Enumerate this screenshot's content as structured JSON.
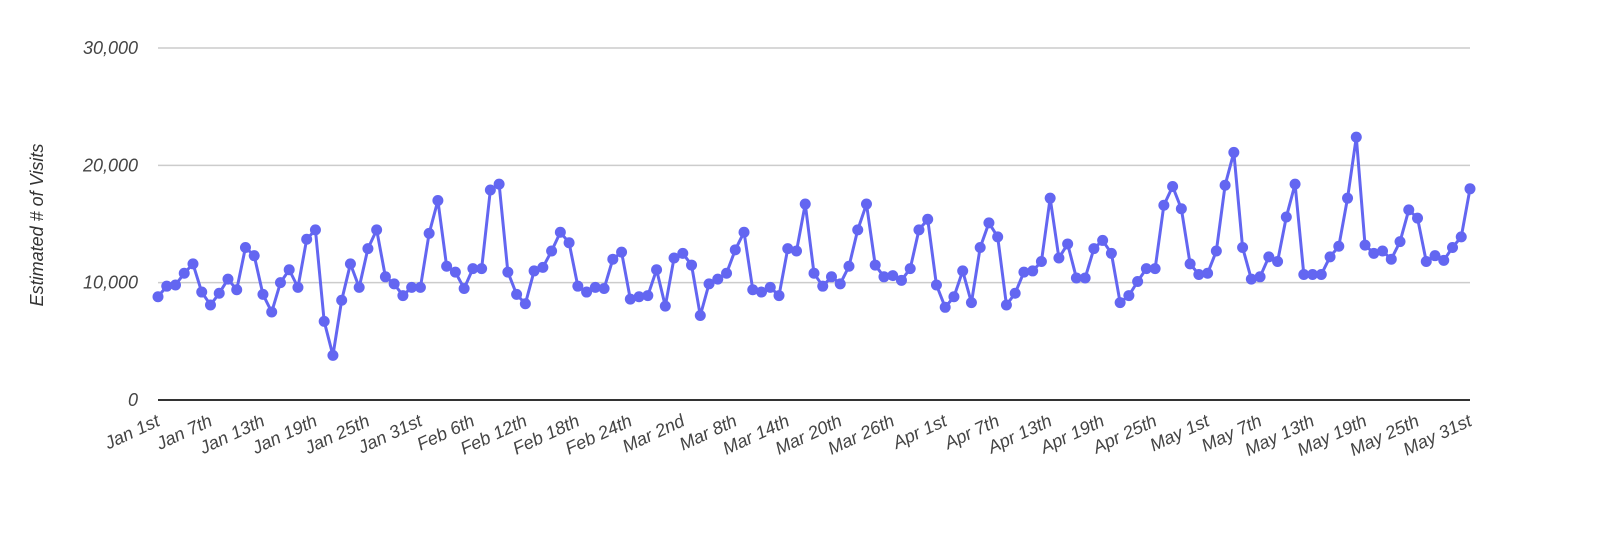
{
  "chart_data": {
    "type": "line",
    "title": "",
    "xlabel": "",
    "ylabel": "Estimated # of Visits",
    "ylim": [
      0,
      30000
    ],
    "y_ticks": [
      0,
      10000,
      20000,
      30000
    ],
    "y_tick_labels": [
      "0",
      "10,000",
      "20,000",
      "30,000"
    ],
    "x_tick_labels": [
      "Jan 1st",
      "Jan 7th",
      "Jan 13th",
      "Jan 19th",
      "Jan 25th",
      "Jan 31st",
      "Feb 6th",
      "Feb 12th",
      "Feb 18th",
      "Feb 24th",
      "Mar 2nd",
      "Mar 8th",
      "Mar 14th",
      "Mar 20th",
      "Mar 26th",
      "Apr 1st",
      "Apr 7th",
      "Apr 13th",
      "Apr 19th",
      "Apr 25th",
      "May 1st",
      "May 7th",
      "May 13th",
      "May 19th",
      "May 25th",
      "May 31st"
    ],
    "x_tick_every_days": 6,
    "grid": true,
    "color": "#6366F1",
    "series": [
      {
        "values": [
          8800,
          9700,
          9800,
          10800,
          11600,
          9200,
          8100,
          9100,
          10300,
          9400,
          13000,
          12300,
          9000,
          7500,
          10000,
          11100,
          9600,
          13700,
          14500,
          6700,
          3800,
          8500,
          11600,
          9600,
          12900,
          14500,
          10500,
          9900,
          8900,
          9600,
          9600,
          14200,
          17000,
          11400,
          10900,
          9500,
          11200,
          11200,
          17900,
          18400,
          10900,
          9000,
          8200,
          11000,
          11300,
          12700,
          14300,
          13400,
          9700,
          9200,
          9600,
          9500,
          12000,
          12600,
          8600,
          8800,
          8900,
          11100,
          8000,
          12100,
          12500,
          11500,
          7200,
          9900,
          10300,
          10800,
          12800,
          14300,
          9400,
          9200,
          9600,
          8900,
          12900,
          12700,
          16700,
          10800,
          9700,
          10500,
          9900,
          11400,
          14500,
          16700,
          11500,
          10500,
          10600,
          10200,
          11200,
          14500,
          15400,
          9800,
          7900,
          8800,
          11000,
          8300,
          13000,
          15100,
          13900,
          8100,
          9100,
          10900,
          11000,
          11800,
          17200,
          12100,
          13300,
          10400,
          10400,
          12900,
          13600,
          12500,
          8300,
          8900,
          10100,
          11200,
          11200,
          16600,
          18200,
          16300,
          11600,
          10700,
          10800,
          12700,
          18300,
          21100,
          13000,
          10300,
          10500,
          12200,
          11800,
          15600,
          18400,
          10700,
          10700,
          10700,
          12200,
          13100,
          17200,
          22400,
          13200,
          12500,
          12700,
          12000,
          13500,
          16200,
          15500,
          11800,
          12300,
          11900,
          13000,
          13900,
          18000
        ]
      }
    ]
  }
}
